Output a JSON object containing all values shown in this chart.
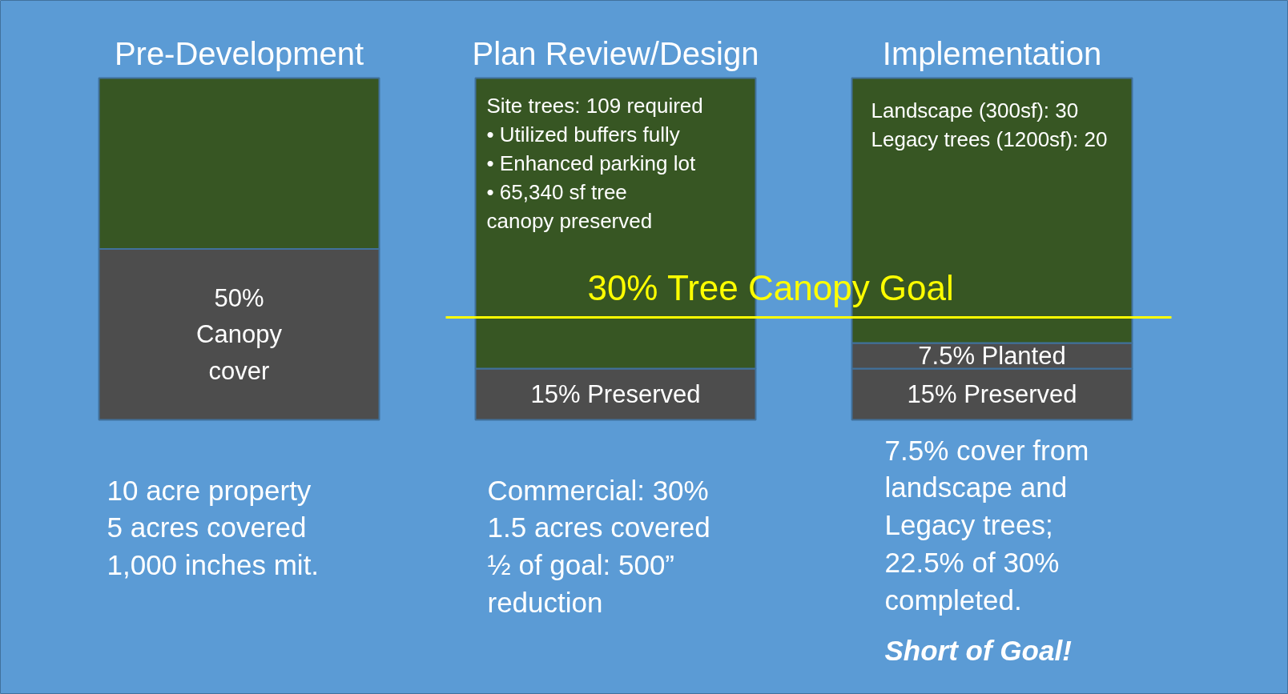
{
  "chart_data": {
    "type": "bar",
    "stacked": true,
    "grid": false,
    "tick_labels": "x",
    "categories": [
      "Pre-Development",
      "Plan Review/Design",
      "Implementation"
    ],
    "ylim": [
      0,
      100
    ],
    "series": [
      {
        "color": "#4d4d4d",
        "values": [
          50,
          15,
          15
        ],
        "value_labels": [
          "50%\nCanopy\ncover",
          "15% Preserved",
          "15% Preserved"
        ]
      },
      {
        "color": "#4d4d4d",
        "values": [
          null,
          null,
          7.5
        ],
        "value_labels": [
          null,
          null,
          "7.5% Planted"
        ]
      },
      {
        "color": "#375623",
        "values": [
          50,
          85,
          77.5
        ]
      }
    ],
    "ref_lines": [
      {
        "axis": "y",
        "value": 30,
        "label": "30% Tree Canopy Goal",
        "color": "#ffff00"
      }
    ],
    "annotations": [
      "10 acre property\n5 acres covered\n1,000 inches mit.",
      "Site trees: 109 required\n•  Utilized buffers fully\n•  Enhanced parking lot\n•  65,340 sf tree\n    canopy preserved",
      "Commercial: 30%\n1.5 acres covered\n½ of goal: 500”\nreduction",
      "Landscape (300sf): 30\nLegacy trees (1200sf): 20",
      "7.5% cover from\nlandscape and\nLegacy trees;\n22.5% of 30%\ncompleted.",
      "Short of Goal!"
    ]
  }
}
